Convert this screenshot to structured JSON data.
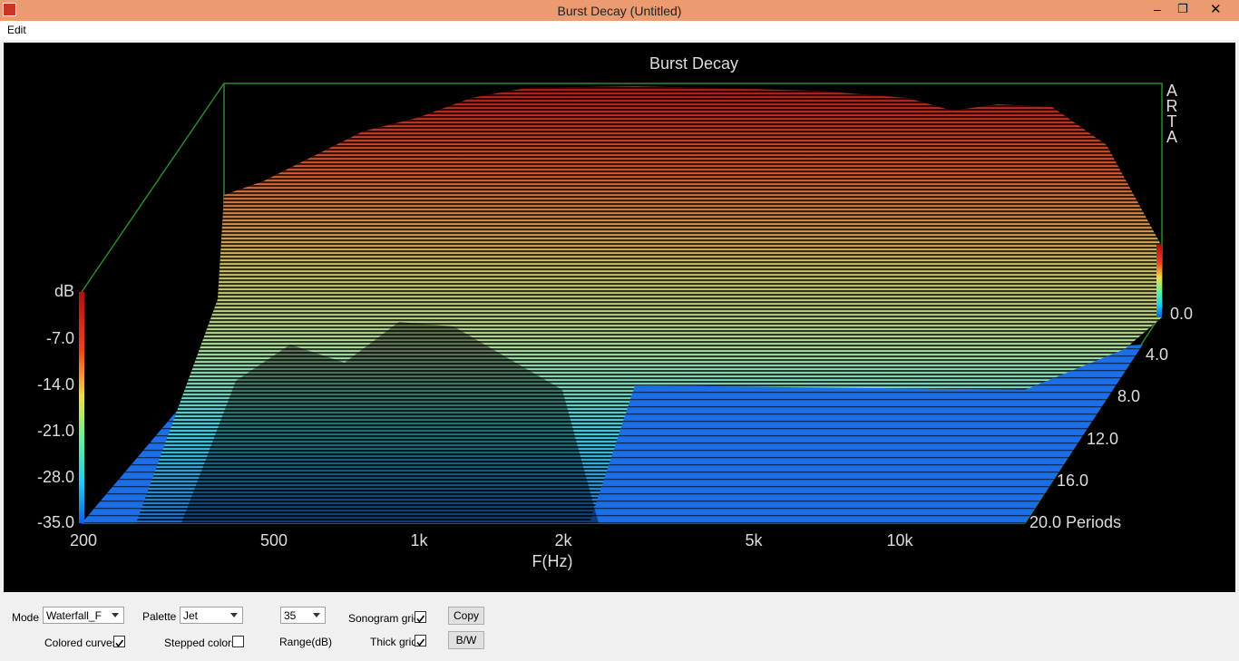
{
  "window": {
    "title": "Burst Decay  (Untitled)"
  },
  "menu": [
    "Edit"
  ],
  "plot": {
    "title": "Burst Decay",
    "watermark": [
      "A",
      "R",
      "T",
      "A"
    ],
    "z_unit": "dB",
    "z_ticks": [
      "-7.0",
      "-14.0",
      "-21.0",
      "-28.0",
      "-35.0"
    ],
    "x_ticks": [
      "200",
      "500",
      "1k",
      "2k",
      "5k",
      "10k"
    ],
    "x_label": "F(Hz)",
    "period_ticks": [
      "0.0",
      "4.0",
      "8.0",
      "12.0",
      "16.0",
      "20.0 Periods"
    ]
  },
  "controls": {
    "mode": {
      "label": "Mode",
      "value": "Waterfall_F"
    },
    "palette": {
      "label": "Palette",
      "value": "Jet"
    },
    "range": {
      "value": "35",
      "label": "Range(dB)"
    },
    "sonogram_grid": {
      "label": "Sonogram grid",
      "checked": true
    },
    "thick_grid": {
      "label": "Thick grid",
      "checked": true
    },
    "colored_curves": {
      "label": "Colored curves",
      "checked": true
    },
    "stepped_colors": {
      "label": "Stepped colors",
      "checked": false
    },
    "copy": "Copy",
    "bw": "B/W"
  }
}
